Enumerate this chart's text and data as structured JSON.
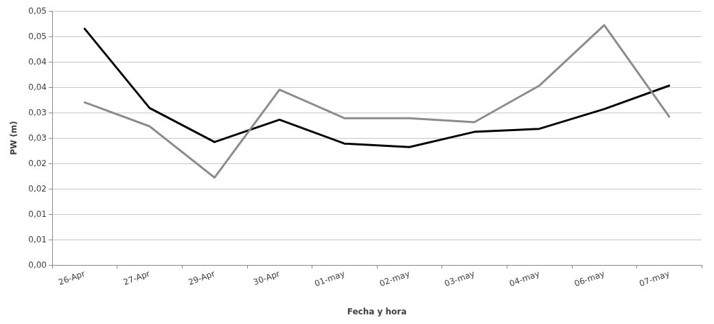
{
  "chart_data": {
    "type": "line",
    "xlabel": "Fecha y hora",
    "ylabel": "PW (m)",
    "categories": [
      "26-Apr",
      "27-Apr",
      "29-Apr",
      "30-Apr",
      "01-may",
      "02-may",
      "03-may",
      "04-may",
      "06-may",
      "07-may"
    ],
    "series": [
      {
        "color": "#000000",
        "values": [
          0.0465,
          0.0309,
          0.0242,
          0.0286,
          0.0239,
          0.0232,
          0.0262,
          0.0268,
          0.0307,
          0.0353
        ]
      },
      {
        "color": "#8c8c8c",
        "values": [
          0.032,
          0.0273,
          0.0172,
          0.0345,
          0.0289,
          0.0289,
          0.0281,
          0.0353,
          0.0472,
          0.0292
        ]
      }
    ],
    "ylim": [
      0,
      0.05
    ],
    "yticks": [
      {
        "value": 0,
        "label": "0,00"
      },
      {
        "value": 0.005,
        "label": "0,01"
      },
      {
        "value": 0.01,
        "label": "0,01"
      },
      {
        "value": 0.015,
        "label": "0,02"
      },
      {
        "value": 0.02,
        "label": "0,02"
      },
      {
        "value": 0.025,
        "label": "0,03"
      },
      {
        "value": 0.03,
        "label": "0,03"
      },
      {
        "value": 0.035,
        "label": "0,04"
      },
      {
        "value": 0.04,
        "label": "0,04"
      },
      {
        "value": 0.045,
        "label": "0,05"
      },
      {
        "value": 0.05,
        "label": "0,05"
      }
    ],
    "grid": "y",
    "marker": "none",
    "line_style": "solid"
  }
}
